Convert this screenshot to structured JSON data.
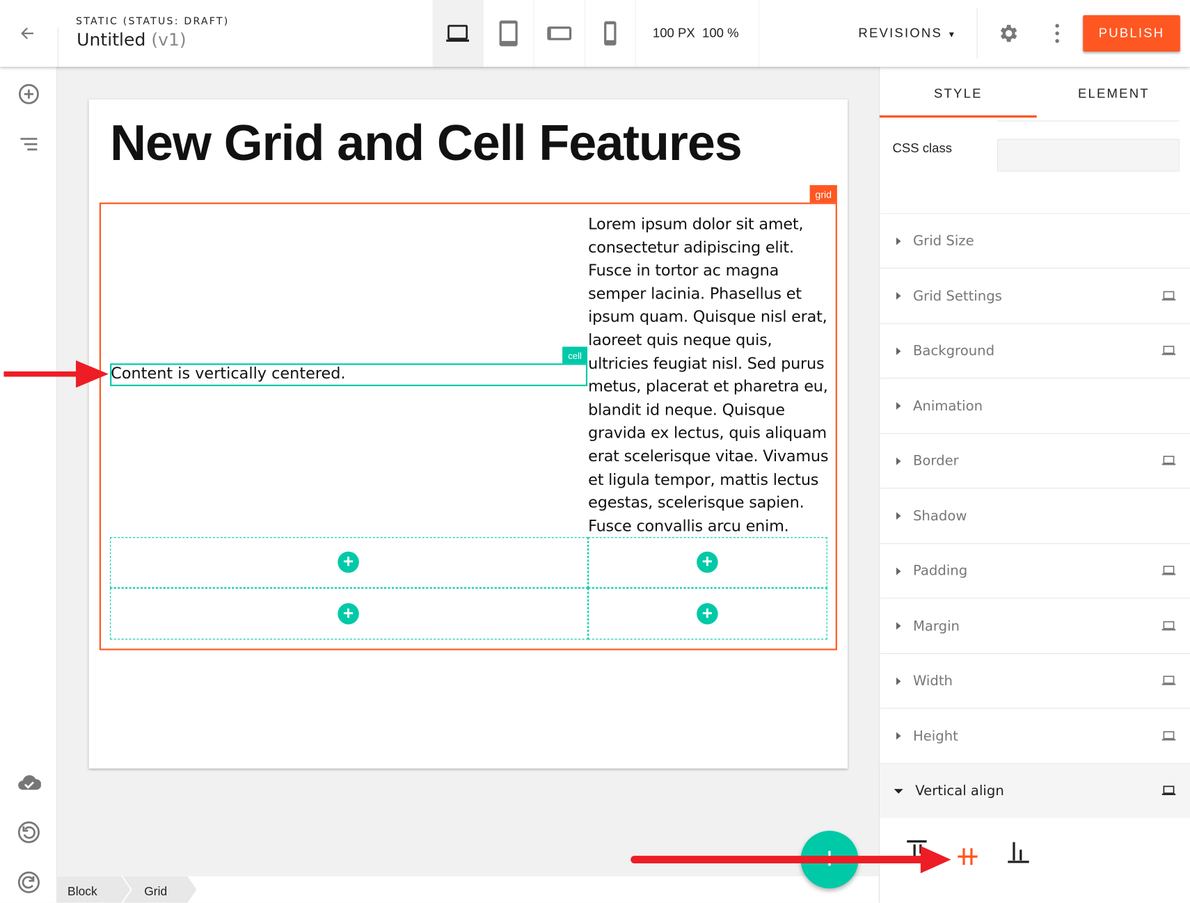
{
  "header": {
    "back_icon": "arrow-left-icon",
    "subtitle": "STATIC (STATUS: DRAFT)",
    "title": "Untitled",
    "version": "(v1)",
    "devices": [
      "laptop-icon",
      "tablet-icon",
      "tablet-landscape-icon",
      "phone-icon"
    ],
    "size_px": "100 PX",
    "size_pct": "100 %",
    "revisions": "REVISIONS",
    "publish": "PUBLISH",
    "accent": "#ff5722"
  },
  "sidebar": {
    "icons": [
      "add-circle-icon",
      "list-icon",
      "cloud-check-icon",
      "undo-icon",
      "redo-icon"
    ]
  },
  "canvas": {
    "heading": "New Grid and Cell Features",
    "grid_label": "grid",
    "cell_label": "cell",
    "cell_text": "Content is vertically centered.",
    "lorem": "Lorem ipsum dolor sit amet, consectetur adipiscing elit. Fusce in tortor ac magna semper lacinia. Phasellus et ipsum quam. Quisque nisl erat, laoreet quis neque quis, ultricies feugiat nisl. Sed purus metus, placerat et pharetra eu, blandit id neque. Quisque gravida ex lectus, quis aliquam erat scelerisque vitae. Vivamus et ligula tempor, mattis lectus egestas, scelerisque sapien. Fusce convallis arcu enim.",
    "teal": "#00c9a7"
  },
  "breadcrumb": [
    "Block",
    "Grid"
  ],
  "panel": {
    "tabs": [
      "STYLE",
      "ELEMENT"
    ],
    "active_tab": "STYLE",
    "css_class_label": "CSS class",
    "css_class_value": "",
    "sections": [
      {
        "label": "Grid Size",
        "responsive": false
      },
      {
        "label": "Grid Settings",
        "responsive": true
      },
      {
        "label": "Background",
        "responsive": true
      },
      {
        "label": "Animation",
        "responsive": false
      },
      {
        "label": "Border",
        "responsive": true
      },
      {
        "label": "Shadow",
        "responsive": false
      },
      {
        "label": "Padding",
        "responsive": true
      },
      {
        "label": "Margin",
        "responsive": true
      },
      {
        "label": "Width",
        "responsive": true
      },
      {
        "label": "Height",
        "responsive": true
      },
      {
        "label": "Vertical align",
        "responsive": true,
        "expanded": true
      }
    ],
    "align_options": [
      "align-top-icon",
      "align-center-icon",
      "align-bottom-icon"
    ],
    "align_selected": "align-center-icon"
  }
}
